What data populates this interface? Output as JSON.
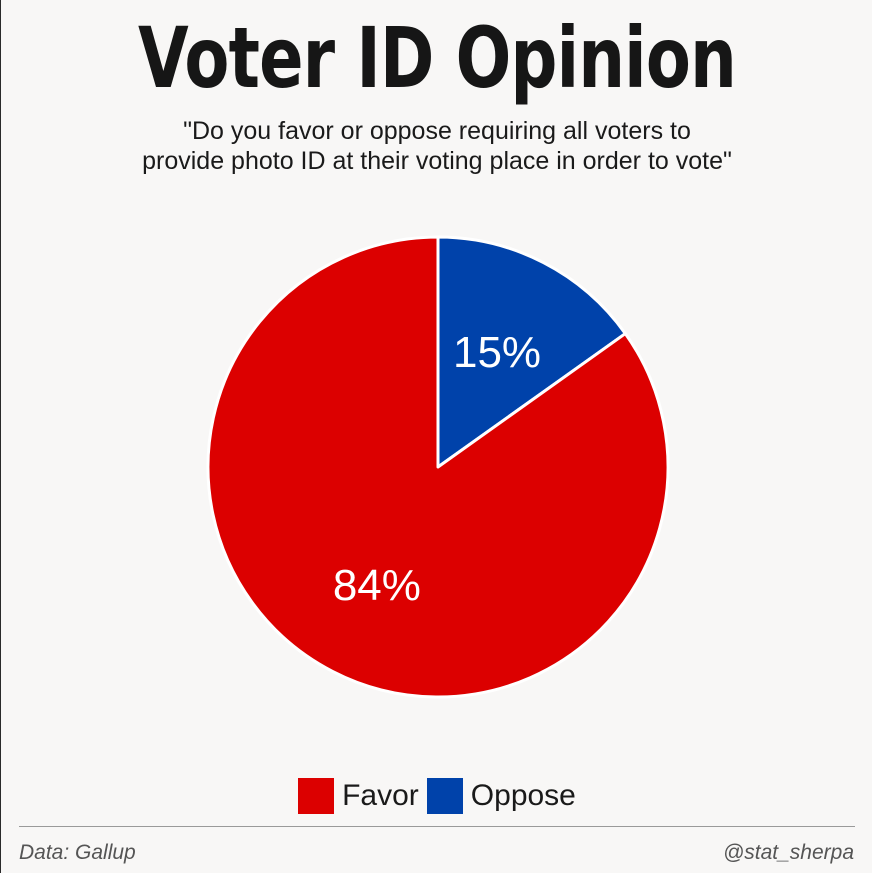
{
  "header": {
    "title": "Voter ID Opinion",
    "subtitle_line1": "\"Do you favor or oppose requiring all voters to",
    "subtitle_line2": "provide photo ID at their voting place in order to vote\""
  },
  "chart_data": {
    "type": "pie",
    "title": "Voter ID Opinion",
    "slices": [
      {
        "label": "Oppose",
        "value": 15,
        "display": "15%",
        "color": "#0042aa"
      },
      {
        "label": "Favor",
        "value": 84,
        "display": "84%",
        "color": "#dc0000"
      }
    ],
    "start_angle_deg": 0,
    "direction": "clockwise",
    "slice_border_color": "#ffffff",
    "label_color": "#ffffff",
    "legend": {
      "placement": "bottom",
      "entries": [
        {
          "label": "Favor",
          "color": "#dc0000"
        },
        {
          "label": "Oppose",
          "color": "#0042aa"
        }
      ]
    }
  },
  "footer": {
    "source": "Data: Gallup",
    "handle": "@stat_sherpa"
  },
  "colors": {
    "background": "#f8f7f6",
    "favor": "#dc0000",
    "oppose": "#0042aa"
  }
}
